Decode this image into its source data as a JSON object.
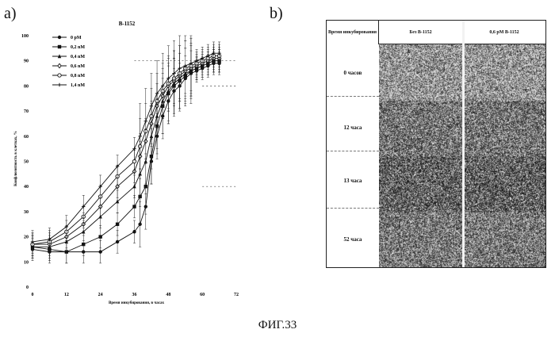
{
  "labels": {
    "panel_a": "a)",
    "panel_b": "b)"
  },
  "caption": "ФИГ.33",
  "chart_data": {
    "type": "line",
    "title": "B-1152",
    "xlabel": "Время инкубирования, в часах",
    "ylabel": "Конфлюэнтность в клетках, %",
    "xlim": [
      0,
      72
    ],
    "ylim": [
      0,
      100
    ],
    "xticks": [
      "0",
      "12",
      "24",
      "36",
      "48",
      "60",
      "72"
    ],
    "yticks": [
      "0",
      "10",
      "20",
      "30",
      "40",
      "50",
      "60",
      "70",
      "80",
      "90",
      "100"
    ],
    "x": [
      0,
      6,
      12,
      18,
      24,
      30,
      36,
      38,
      40,
      42,
      44,
      46,
      48,
      50,
      52,
      54,
      56,
      58,
      60,
      62,
      64,
      66
    ],
    "series": [
      {
        "name": "0 pM",
        "marker": "circle",
        "values": [
          15,
          14,
          14,
          14,
          14,
          18,
          22,
          25,
          32,
          50,
          60,
          68,
          74,
          78,
          80,
          83,
          85,
          86,
          87,
          88,
          89,
          89
        ]
      },
      {
        "name": "0,2 nM",
        "marker": "square",
        "values": [
          16,
          15,
          14,
          17,
          20,
          25,
          32,
          36,
          40,
          52,
          64,
          72,
          77,
          80,
          82,
          84,
          86,
          87,
          88,
          89,
          90,
          90
        ]
      },
      {
        "name": "0,4 nM",
        "marker": "triangle",
        "values": [
          16,
          16,
          18,
          22,
          28,
          34,
          40,
          45,
          50,
          60,
          68,
          74,
          78,
          81,
          83,
          85,
          86,
          87,
          88,
          89,
          90,
          90
        ]
      },
      {
        "name": "0,6 nM",
        "marker": "diamond",
        "values": [
          17,
          17,
          20,
          25,
          32,
          40,
          46,
          52,
          58,
          65,
          72,
          76,
          80,
          82,
          84,
          86,
          87,
          88,
          89,
          90,
          91,
          91
        ]
      },
      {
        "name": "0,8 nM",
        "marker": "circle-open",
        "values": [
          17,
          18,
          22,
          28,
          36,
          44,
          50,
          56,
          62,
          68,
          74,
          78,
          81,
          83,
          85,
          87,
          88,
          89,
          90,
          91,
          92,
          92
        ]
      },
      {
        "name": "1,4 nM",
        "marker": "plus",
        "values": [
          18,
          19,
          24,
          32,
          40,
          48,
          55,
          60,
          66,
          72,
          77,
          80,
          83,
          85,
          87,
          88,
          89,
          90,
          91,
          92,
          93,
          93
        ]
      }
    ],
    "dashed_reference": [
      {
        "y": 90,
        "x": [
          36,
          72
        ]
      },
      {
        "y": 80,
        "x": [
          60,
          72
        ]
      },
      {
        "y": 40,
        "x": [
          60,
          72
        ]
      }
    ]
  },
  "micro_panel": {
    "header_first": "Время инкубирования",
    "columns": [
      "Без B-1152",
      "0,6 pM B-1152"
    ],
    "rows": [
      "0 часов",
      "12 часа",
      "13 часа",
      "52 часа"
    ]
  }
}
